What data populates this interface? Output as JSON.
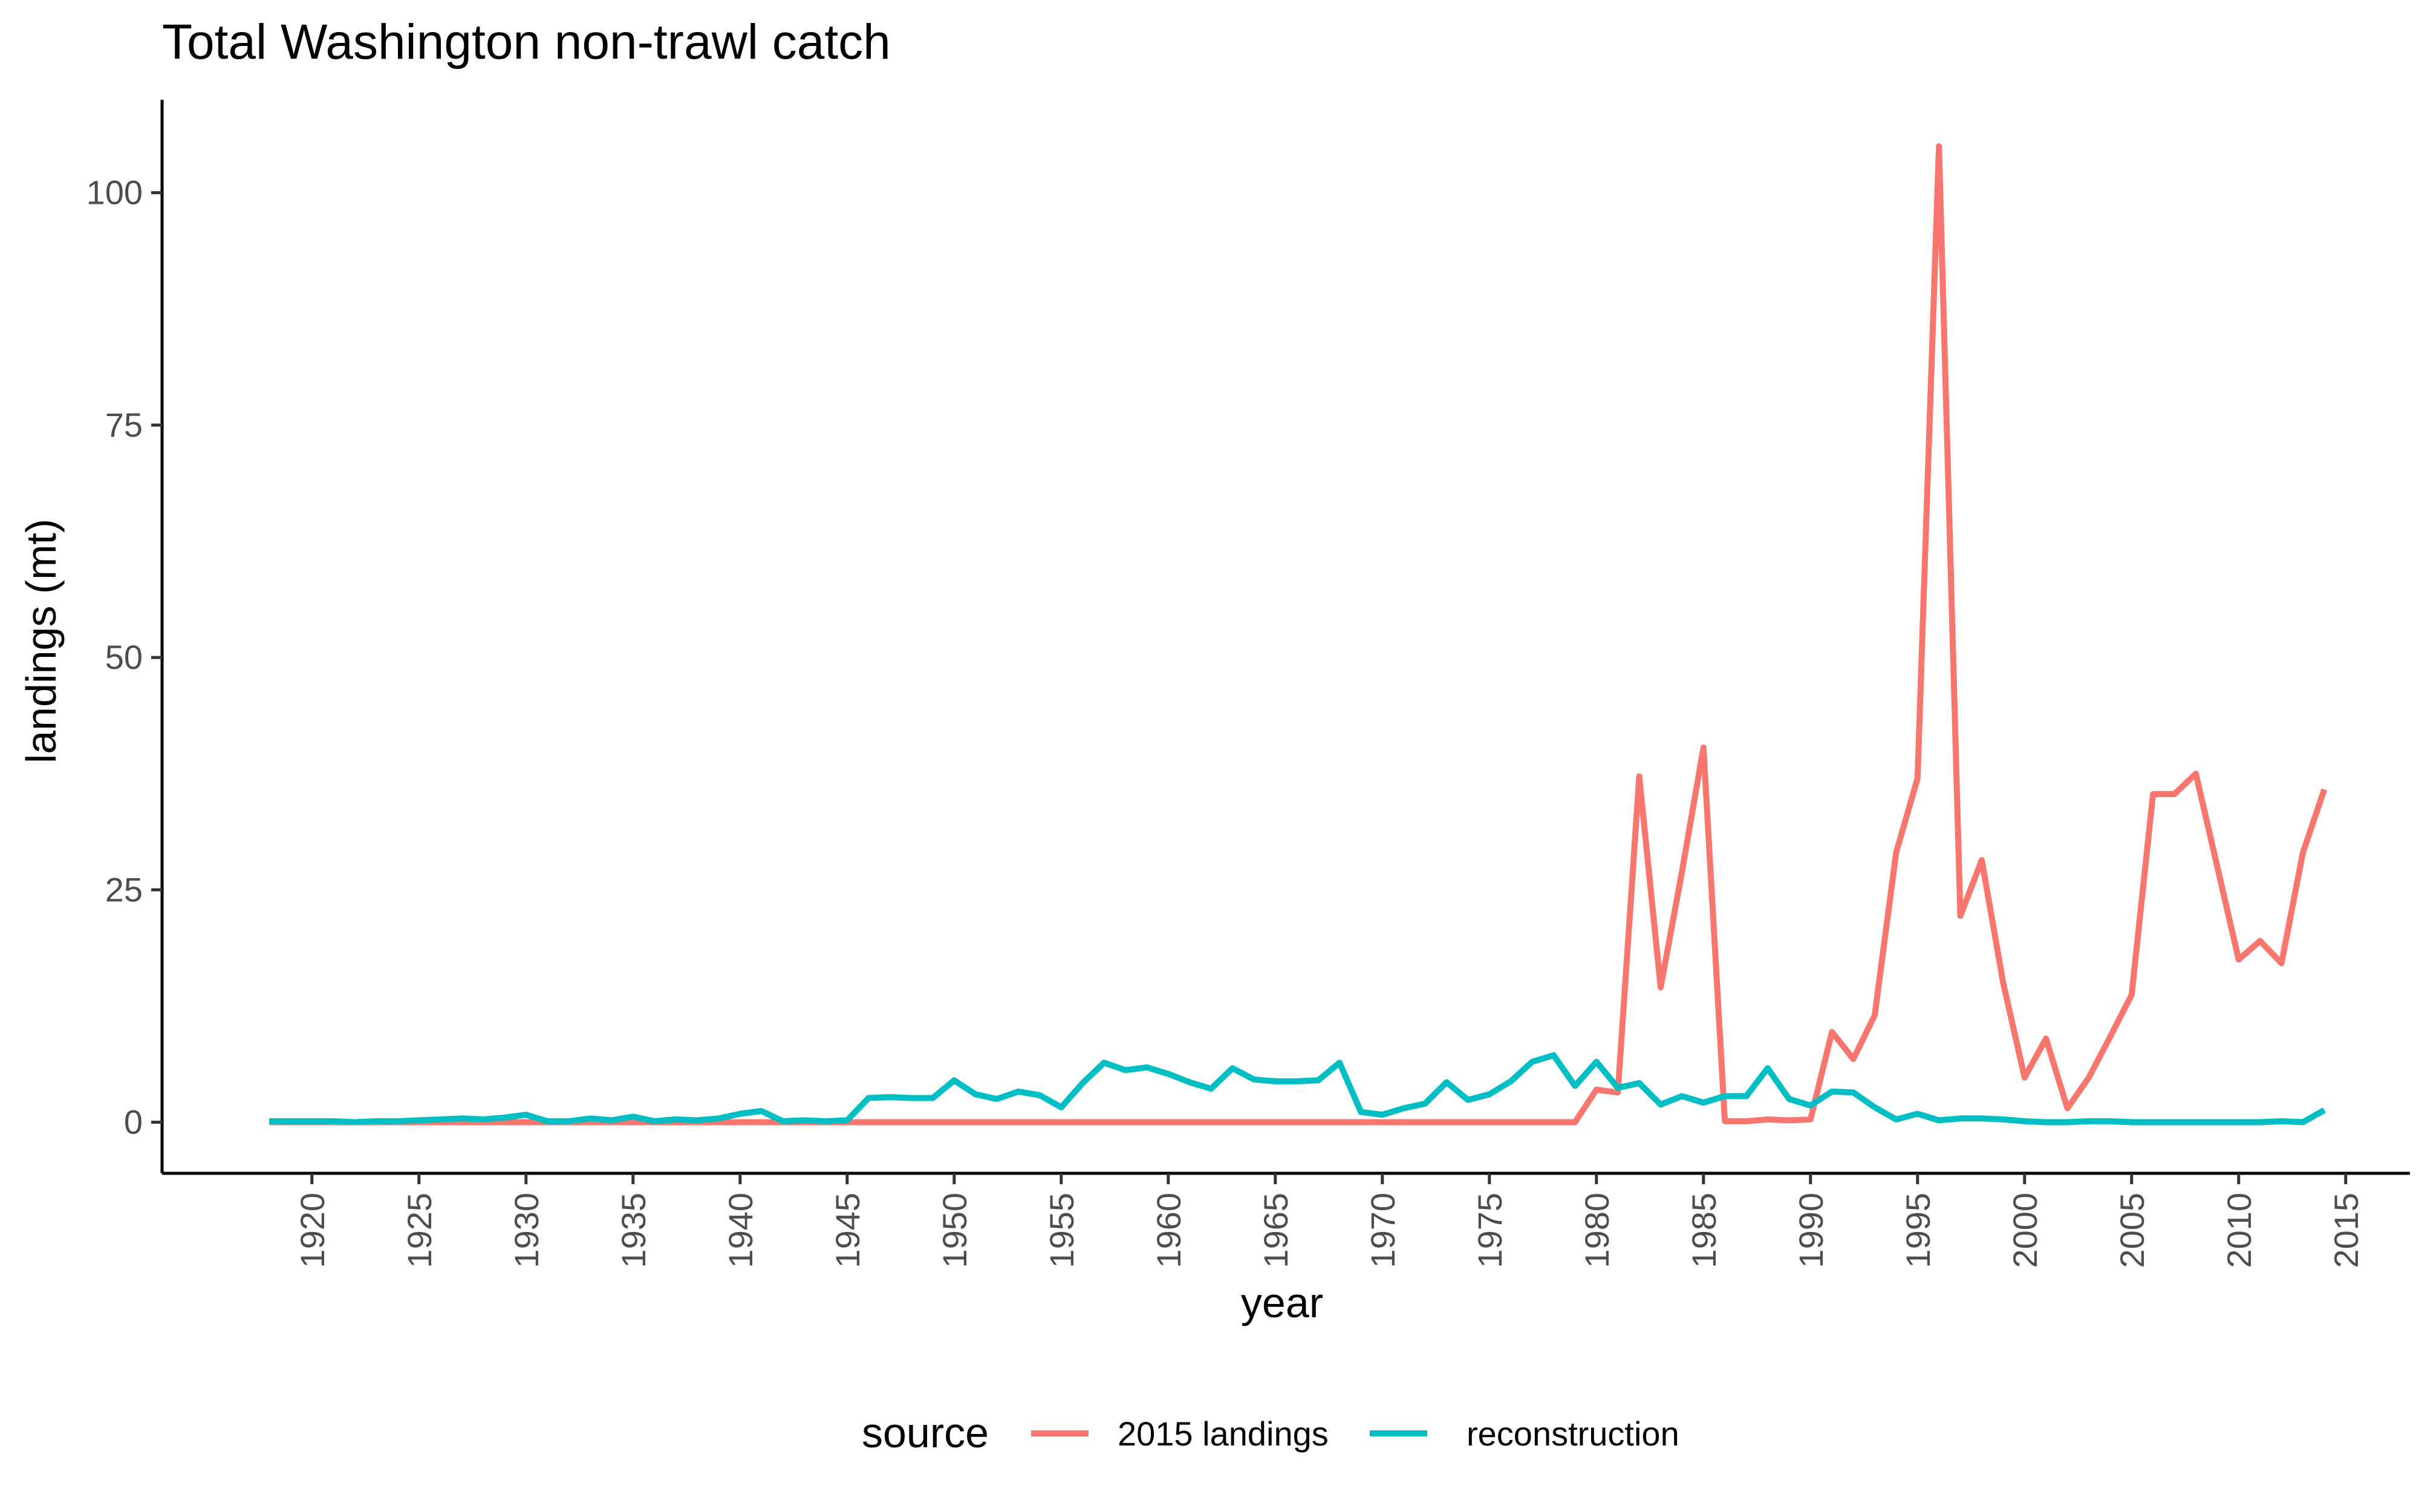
{
  "chart_data": {
    "type": "line",
    "title": "Total Washington non-trawl catch",
    "xlabel": "year",
    "ylabel": "landings (mt)",
    "xlim": [
      1913,
      2018
    ],
    "ylim": [
      -5.5,
      110
    ],
    "x_ticks": [
      1920,
      1925,
      1930,
      1935,
      1940,
      1945,
      1950,
      1955,
      1960,
      1965,
      1970,
      1975,
      1980,
      1985,
      1990,
      1995,
      2000,
      2005,
      2010,
      2015
    ],
    "y_ticks": [
      0,
      25,
      50,
      75,
      100
    ],
    "grid": false,
    "legend": {
      "title": "source",
      "position": "bottom"
    },
    "series": [
      {
        "name": "2015 landings",
        "color": "#F8766D",
        "points": [
          [
            1918,
            0
          ],
          [
            1919,
            0
          ],
          [
            1920,
            0
          ],
          [
            1921,
            0
          ],
          [
            1922,
            0
          ],
          [
            1923,
            0
          ],
          [
            1924,
            0
          ],
          [
            1925,
            0
          ],
          [
            1926,
            0
          ],
          [
            1927,
            0
          ],
          [
            1928,
            0
          ],
          [
            1929,
            0
          ],
          [
            1930,
            0
          ],
          [
            1931,
            0
          ],
          [
            1932,
            0
          ],
          [
            1933,
            0
          ],
          [
            1934,
            0
          ],
          [
            1935,
            0
          ],
          [
            1936,
            0
          ],
          [
            1937,
            0
          ],
          [
            1938,
            0
          ],
          [
            1939,
            0
          ],
          [
            1940,
            0
          ],
          [
            1941,
            0
          ],
          [
            1942,
            0
          ],
          [
            1943,
            0
          ],
          [
            1944,
            0
          ],
          [
            1945,
            0
          ],
          [
            1946,
            0
          ],
          [
            1947,
            0
          ],
          [
            1948,
            0
          ],
          [
            1949,
            0
          ],
          [
            1950,
            0
          ],
          [
            1951,
            0
          ],
          [
            1952,
            0
          ],
          [
            1953,
            0
          ],
          [
            1954,
            0
          ],
          [
            1955,
            0
          ],
          [
            1956,
            0
          ],
          [
            1957,
            0
          ],
          [
            1958,
            0
          ],
          [
            1959,
            0
          ],
          [
            1960,
            0
          ],
          [
            1961,
            0
          ],
          [
            1962,
            0
          ],
          [
            1963,
            0
          ],
          [
            1964,
            0
          ],
          [
            1965,
            0
          ],
          [
            1966,
            0
          ],
          [
            1967,
            0
          ],
          [
            1968,
            0
          ],
          [
            1969,
            0
          ],
          [
            1970,
            0
          ],
          [
            1971,
            0
          ],
          [
            1972,
            0
          ],
          [
            1973,
            0
          ],
          [
            1974,
            0
          ],
          [
            1975,
            0
          ],
          [
            1976,
            0
          ],
          [
            1977,
            0
          ],
          [
            1978,
            0
          ],
          [
            1979,
            0
          ],
          [
            1980,
            3.5
          ],
          [
            1981,
            3.2
          ],
          [
            1982,
            37.2
          ],
          [
            1983,
            14.5
          ],
          [
            1984,
            27.0
          ],
          [
            1985,
            40.3
          ],
          [
            1986,
            0.1
          ],
          [
            1987,
            0.1
          ],
          [
            1988,
            0.3
          ],
          [
            1989,
            0.2
          ],
          [
            1990,
            0.3
          ],
          [
            1991,
            9.7
          ],
          [
            1992,
            6.8
          ],
          [
            1993,
            11.5
          ],
          [
            1994,
            29.0
          ],
          [
            1995,
            37.0
          ],
          [
            1996,
            105.0
          ],
          [
            1997,
            22.2
          ],
          [
            1998,
            28.2
          ],
          [
            1999,
            15.0
          ],
          [
            2000,
            4.8
          ],
          [
            2001,
            9.0
          ],
          [
            2002,
            1.5
          ],
          [
            2003,
            4.8
          ],
          [
            2004,
            9.2
          ],
          [
            2005,
            13.7
          ],
          [
            2006,
            35.3
          ],
          [
            2007,
            35.3
          ],
          [
            2008,
            37.5
          ],
          [
            2009,
            27.5
          ],
          [
            2010,
            17.5
          ],
          [
            2011,
            19.5
          ],
          [
            2012,
            17.1
          ],
          [
            2013,
            29.0
          ],
          [
            2014,
            35.8
          ]
        ]
      },
      {
        "name": "reconstruction",
        "color": "#00BFC4",
        "points": [
          [
            1918,
            0.1
          ],
          [
            1919,
            0.1
          ],
          [
            1920,
            0.1
          ],
          [
            1921,
            0.1
          ],
          [
            1922,
            0.0
          ],
          [
            1923,
            0.1
          ],
          [
            1924,
            0.1
          ],
          [
            1925,
            0.2
          ],
          [
            1926,
            0.3
          ],
          [
            1927,
            0.4
          ],
          [
            1928,
            0.3
          ],
          [
            1929,
            0.5
          ],
          [
            1930,
            0.8
          ],
          [
            1931,
            0.1
          ],
          [
            1932,
            0.1
          ],
          [
            1933,
            0.4
          ],
          [
            1934,
            0.2
          ],
          [
            1935,
            0.6
          ],
          [
            1936,
            0.1
          ],
          [
            1937,
            0.3
          ],
          [
            1938,
            0.2
          ],
          [
            1939,
            0.4
          ],
          [
            1940,
            0.9
          ],
          [
            1941,
            1.2
          ],
          [
            1942,
            0.1
          ],
          [
            1943,
            0.2
          ],
          [
            1944,
            0.1
          ],
          [
            1945,
            0.2
          ],
          [
            1946,
            2.6
          ],
          [
            1947,
            2.7
          ],
          [
            1948,
            2.6
          ],
          [
            1949,
            2.6
          ],
          [
            1950,
            4.5
          ],
          [
            1951,
            3.0
          ],
          [
            1952,
            2.5
          ],
          [
            1953,
            3.3
          ],
          [
            1954,
            2.9
          ],
          [
            1955,
            1.6
          ],
          [
            1956,
            4.2
          ],
          [
            1957,
            6.4
          ],
          [
            1958,
            5.6
          ],
          [
            1959,
            5.9
          ],
          [
            1960,
            5.2
          ],
          [
            1961,
            4.3
          ],
          [
            1962,
            3.6
          ],
          [
            1963,
            5.8
          ],
          [
            1964,
            4.6
          ],
          [
            1965,
            4.4
          ],
          [
            1966,
            4.4
          ],
          [
            1967,
            4.5
          ],
          [
            1968,
            6.4
          ],
          [
            1969,
            1.1
          ],
          [
            1970,
            0.8
          ],
          [
            1971,
            1.5
          ],
          [
            1972,
            2.0
          ],
          [
            1973,
            4.3
          ],
          [
            1974,
            2.4
          ],
          [
            1975,
            3.0
          ],
          [
            1976,
            4.4
          ],
          [
            1977,
            6.5
          ],
          [
            1978,
            7.2
          ],
          [
            1979,
            3.9
          ],
          [
            1980,
            6.5
          ],
          [
            1981,
            3.7
          ],
          [
            1982,
            4.2
          ],
          [
            1983,
            1.9
          ],
          [
            1984,
            2.8
          ],
          [
            1985,
            2.1
          ],
          [
            1986,
            2.8
          ],
          [
            1987,
            2.8
          ],
          [
            1988,
            5.8
          ],
          [
            1989,
            2.5
          ],
          [
            1990,
            1.8
          ],
          [
            1991,
            3.3
          ],
          [
            1992,
            3.2
          ],
          [
            1993,
            1.6
          ],
          [
            1994,
            0.3
          ],
          [
            1995,
            0.9
          ],
          [
            1996,
            0.2
          ],
          [
            1997,
            0.4
          ],
          [
            1998,
            0.4
          ],
          [
            1999,
            0.3
          ],
          [
            2000,
            0.1
          ],
          [
            2001,
            0.0
          ],
          [
            2002,
            0.0
          ],
          [
            2003,
            0.1
          ],
          [
            2004,
            0.1
          ],
          [
            2005,
            0.0
          ],
          [
            2006,
            0.0
          ],
          [
            2007,
            0.0
          ],
          [
            2008,
            0.0
          ],
          [
            2009,
            0.0
          ],
          [
            2010,
            0.0
          ],
          [
            2011,
            0.0
          ],
          [
            2012,
            0.1
          ],
          [
            2013,
            0.0
          ],
          [
            2014,
            1.3
          ]
        ]
      }
    ]
  }
}
